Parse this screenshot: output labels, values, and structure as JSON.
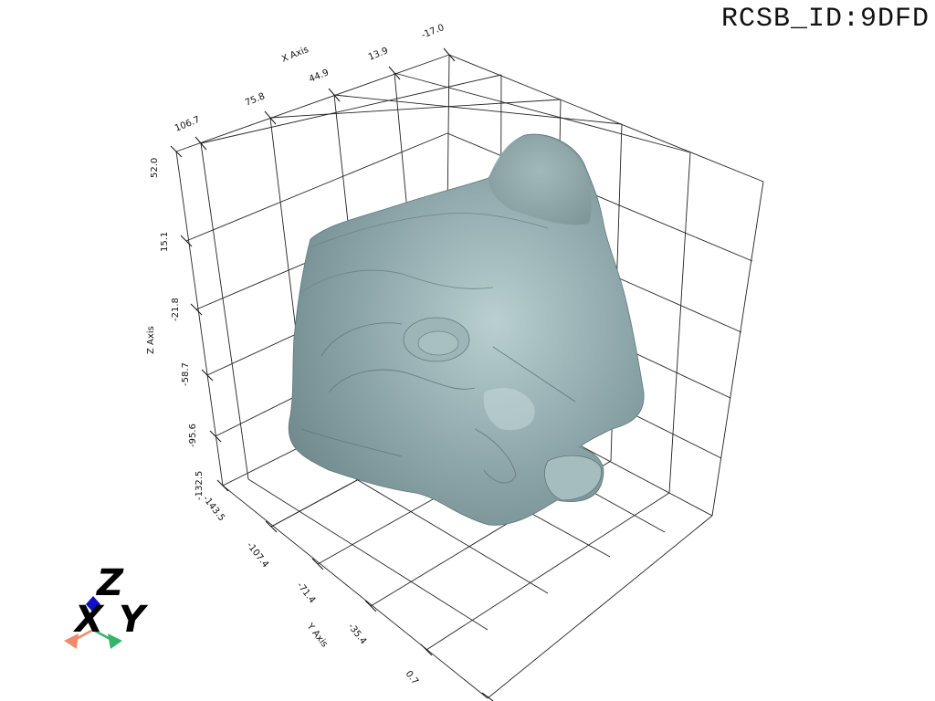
{
  "title": "RCSB_ID:9DFD",
  "axes": {
    "x": {
      "label": "X Axis",
      "ticks": [
        "106.7",
        "75.8",
        "44.9",
        "13.9",
        "-17.0"
      ]
    },
    "y": {
      "label": "Y Axis",
      "ticks": [
        "-143.5",
        "-107.4",
        "-71.4",
        "-35.4",
        "0.7"
      ]
    },
    "z": {
      "label": "Z Axis",
      "ticks": [
        "52.0",
        "15.1",
        "-21.8",
        "-58.7",
        "-95.6",
        "-132.5"
      ]
    }
  },
  "triad": {
    "x": "X",
    "y": "Y",
    "z": "Z"
  },
  "colors": {
    "surface": "#8fa8ab",
    "surface_light": "#b4cacb",
    "surface_dark": "#6e8689",
    "triad_x": "#f08a6c",
    "triad_y": "#35b56a",
    "triad_z": "#1010c8"
  }
}
